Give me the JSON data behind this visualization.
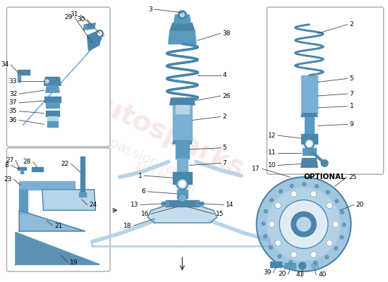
{
  "bg_color": "#ffffff",
  "part_color_blue": "#7ab0d4",
  "part_color_blue_dark": "#4a85aa",
  "part_color_blue_light": "#b8d4e8",
  "part_color_blue_mid": "#5a9abf",
  "line_color": "#444444",
  "box_border": "#bbbbbb",
  "label_fontsize": 6.5,
  "watermark1": "autosparks",
  "watermark2": "passion for",
  "watermark3": "since 1989"
}
